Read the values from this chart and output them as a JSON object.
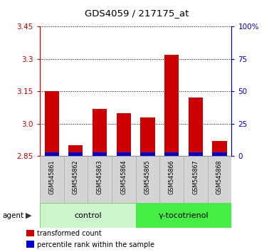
{
  "title": "GDS4059 / 217175_at",
  "samples": [
    "GSM545861",
    "GSM545862",
    "GSM545863",
    "GSM545864",
    "GSM545865",
    "GSM545866",
    "GSM545867",
    "GSM545868"
  ],
  "red_values": [
    3.15,
    2.9,
    3.07,
    3.05,
    3.03,
    3.32,
    3.12,
    2.92
  ],
  "blue_heights": [
    0.018,
    0.018,
    0.018,
    0.018,
    0.018,
    0.018,
    0.018,
    0.018
  ],
  "base": 2.85,
  "ylim_left": [
    2.85,
    3.45
  ],
  "yticks_left": [
    2.85,
    3.0,
    3.15,
    3.3,
    3.45
  ],
  "yticks_right": [
    0,
    25,
    50,
    75,
    100
  ],
  "ylim_right": [
    0,
    100
  ],
  "groups": [
    {
      "label": "control",
      "samples": [
        0,
        1,
        2,
        3
      ],
      "color": "#ccf5cc"
    },
    {
      "label": "γ-tocotrienol",
      "samples": [
        4,
        5,
        6,
        7
      ],
      "color": "#44ee44"
    }
  ],
  "agent_label": "agent",
  "bar_color_red": "#cc0000",
  "bar_color_blue": "#0000cc",
  "bg_plot": "#ffffff",
  "sample_box_color": "#d4d4d4",
  "sample_box_edge": "#aaaaaa",
  "grid_color": "#000000",
  "title_color": "#000000",
  "left_axis_color": "#cc0000",
  "right_axis_color": "#0000cc",
  "legend_items": [
    {
      "color": "#cc0000",
      "label": "transformed count"
    },
    {
      "color": "#0000cc",
      "label": "percentile rank within the sample"
    }
  ]
}
